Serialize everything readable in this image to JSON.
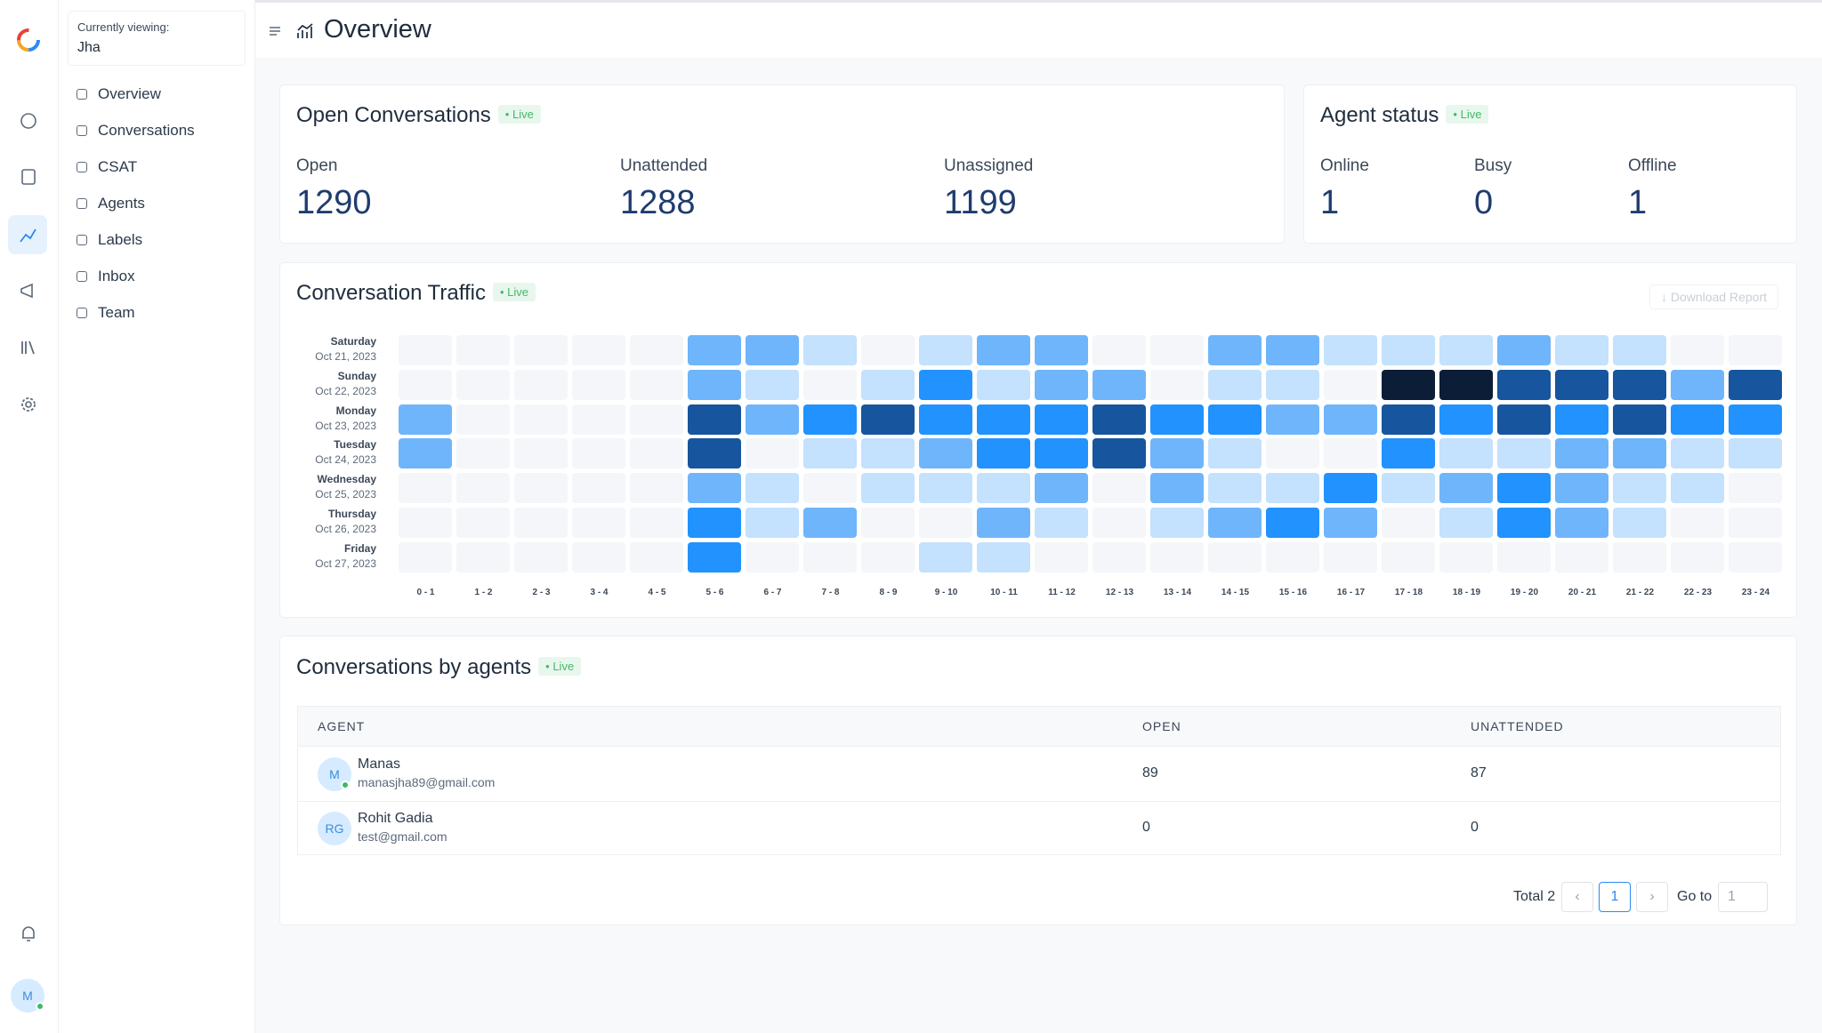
{
  "sidebar": {
    "viewing_label": "Currently viewing:",
    "viewing_name": "Jha",
    "menu": [
      "Overview",
      "Conversations",
      "CSAT",
      "Agents",
      "Labels",
      "Inbox",
      "Team"
    ]
  },
  "user": {
    "initials": "M"
  },
  "header": {
    "title": "Overview"
  },
  "open_conversations": {
    "title": "Open Conversations",
    "badge": "Live",
    "metrics": [
      {
        "label": "Open",
        "value": 1290
      },
      {
        "label": "Unattended",
        "value": 1288
      },
      {
        "label": "Unassigned",
        "value": 1199
      }
    ]
  },
  "agent_status": {
    "title": "Agent status",
    "badge": "Live",
    "metrics": [
      {
        "label": "Online",
        "value": 1
      },
      {
        "label": "Busy",
        "value": 0
      },
      {
        "label": "Offline",
        "value": 1
      }
    ]
  },
  "traffic": {
    "title": "Conversation Traffic",
    "badge": "Live",
    "download": "Download Report",
    "rows": [
      {
        "day": "Saturday",
        "date": "Oct 21, 2023"
      },
      {
        "day": "Sunday",
        "date": "Oct 22, 2023"
      },
      {
        "day": "Monday",
        "date": "Oct 23, 2023"
      },
      {
        "day": "Tuesday",
        "date": "Oct 24, 2023"
      },
      {
        "day": "Wednesday",
        "date": "Oct 25, 2023"
      },
      {
        "day": "Thursday",
        "date": "Oct 26, 2023"
      },
      {
        "day": "Friday",
        "date": "Oct 27, 2023"
      }
    ],
    "columns": [
      "0 - 1",
      "1 - 2",
      "2 - 3",
      "3 - 4",
      "4 - 5",
      "5 - 6",
      "6 - 7",
      "7 - 8",
      "8 - 9",
      "9 - 10",
      "10 - 11",
      "11 - 12",
      "12 - 13",
      "13 - 14",
      "14 - 15",
      "15 - 16",
      "16 - 17",
      "17 - 18",
      "18 - 19",
      "19 - 20",
      "20 - 21",
      "21 - 22",
      "22 - 23",
      "23 - 24"
    ],
    "palette": [
      "#f4f6f9",
      "#c4e1fd",
      "#6fb5fb",
      "#2192fe",
      "#17559e",
      "#0c1d38"
    ],
    "levels": [
      [
        0,
        0,
        0,
        0,
        0,
        2,
        2,
        1,
        0,
        1,
        2,
        2,
        0,
        0,
        2,
        2,
        1,
        1,
        1,
        2,
        1,
        1,
        0,
        0
      ],
      [
        0,
        0,
        0,
        0,
        0,
        2,
        1,
        0,
        1,
        3,
        1,
        2,
        2,
        0,
        1,
        1,
        0,
        5,
        5,
        4,
        4,
        4,
        2,
        4
      ],
      [
        2,
        0,
        0,
        0,
        0,
        4,
        2,
        3,
        4,
        3,
        3,
        3,
        4,
        3,
        3,
        2,
        2,
        4,
        3,
        4,
        3,
        4,
        3,
        3
      ],
      [
        2,
        0,
        0,
        0,
        0,
        4,
        0,
        1,
        1,
        2,
        3,
        3,
        4,
        2,
        1,
        0,
        0,
        3,
        1,
        1,
        2,
        2,
        1,
        1
      ],
      [
        0,
        0,
        0,
        0,
        0,
        2,
        1,
        0,
        1,
        1,
        1,
        2,
        0,
        2,
        1,
        1,
        3,
        1,
        2,
        3,
        2,
        1,
        1,
        0
      ],
      [
        0,
        0,
        0,
        0,
        0,
        3,
        1,
        2,
        0,
        0,
        2,
        1,
        0,
        1,
        2,
        3,
        2,
        0,
        1,
        3,
        2,
        1,
        0,
        0
      ],
      [
        0,
        0,
        0,
        0,
        0,
        3,
        0,
        0,
        0,
        1,
        1,
        0,
        0,
        0,
        0,
        0,
        0,
        0,
        0,
        0,
        0,
        0,
        0,
        0
      ]
    ]
  },
  "agents_table": {
    "title": "Conversations by agents",
    "badge": "Live",
    "headers": [
      "AGENT",
      "OPEN",
      "UNATTENDED"
    ],
    "rows": [
      {
        "initials": "M",
        "name": "Manas",
        "email": "manasjha89@gmail.com",
        "open": 89,
        "unattended": 87
      },
      {
        "initials": "RG",
        "name": "Rohit Gadia",
        "email": "test@gmail.com",
        "open": 0,
        "unattended": 0
      }
    ]
  },
  "pagination": {
    "total": "Total 2",
    "page": "1",
    "goto_label": "Go to",
    "goto_value": "1"
  }
}
